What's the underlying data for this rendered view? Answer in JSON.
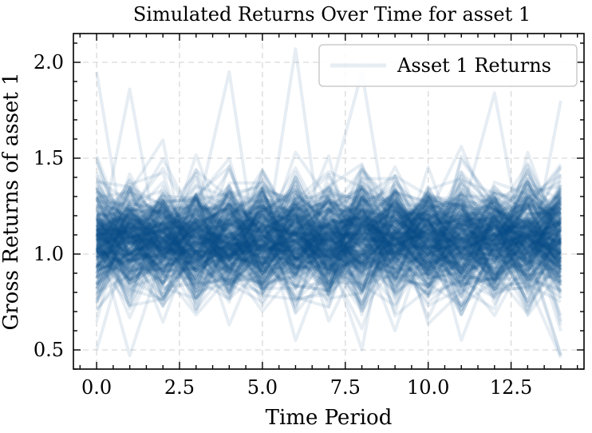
{
  "chart_data": {
    "type": "line",
    "title": "Simulated Returns Over Time for asset 1",
    "xlabel": "Time Period",
    "ylabel": "Gross Returns of asset 1",
    "xlim": [
      -0.7,
      14.7
    ],
    "ylim": [
      0.4,
      2.15
    ],
    "xticks": [
      0.0,
      2.5,
      5.0,
      7.5,
      10.0,
      12.5
    ],
    "xtick_labels": [
      "0.0",
      "2.5",
      "5.0",
      "7.5",
      "10.0",
      "12.5"
    ],
    "yticks": [
      0.5,
      1.0,
      1.5,
      2.0
    ],
    "ytick_labels": [
      "0.5",
      "1.0",
      "1.5",
      "2.0"
    ],
    "grid": true,
    "legend": {
      "placement": "top-right",
      "entries": [
        "Asset 1 Returns"
      ]
    },
    "series_color": "#0C4E8A",
    "series_alpha": 0.1,
    "time_periods": [
      0,
      1,
      2,
      3,
      4,
      5,
      6,
      7,
      8,
      9,
      10,
      11,
      12,
      13,
      14
    ],
    "num_paths": 300,
    "distribution": {
      "mean": 1.08,
      "std": 0.15
    },
    "highlighted_paths": [
      {
        "x": [
          0,
          1,
          2,
          3,
          4,
          5,
          6,
          7,
          8,
          9,
          10,
          11,
          12,
          13,
          14
        ],
        "y": [
          1.95,
          0.9,
          1.35,
          1.0,
          1.2,
          0.95,
          2.07,
          0.8,
          1.1,
          1.3,
          0.9,
          1.0,
          1.15,
          0.85,
          1.1
        ]
      },
      {
        "x": [
          0,
          1,
          2,
          3,
          4,
          5,
          6,
          7,
          8,
          9,
          10,
          11,
          12,
          13,
          14
        ],
        "y": [
          1.0,
          1.86,
          0.9,
          1.2,
          1.95,
          0.8,
          1.0,
          1.3,
          1.95,
          0.9,
          1.1,
          1.2,
          1.84,
          0.9,
          1.8
        ]
      },
      {
        "x": [
          0,
          1,
          2,
          3,
          4,
          5,
          6,
          7,
          8,
          9,
          10,
          11,
          12,
          13,
          14
        ],
        "y": [
          0.5,
          1.1,
          0.8,
          1.0,
          0.75,
          1.2,
          0.55,
          1.0,
          1.05,
          0.6,
          1.1,
          0.9,
          0.68,
          1.0,
          0.47
        ]
      },
      {
        "x": [
          0,
          1,
          2,
          3,
          4,
          5,
          6,
          7,
          8,
          9,
          10,
          11,
          12,
          13,
          14
        ],
        "y": [
          1.1,
          0.47,
          1.0,
          0.7,
          1.1,
          0.9,
          1.2,
          0.65,
          1.0,
          0.8,
          1.2,
          0.55,
          1.0,
          0.7,
          1.0
        ]
      }
    ]
  }
}
